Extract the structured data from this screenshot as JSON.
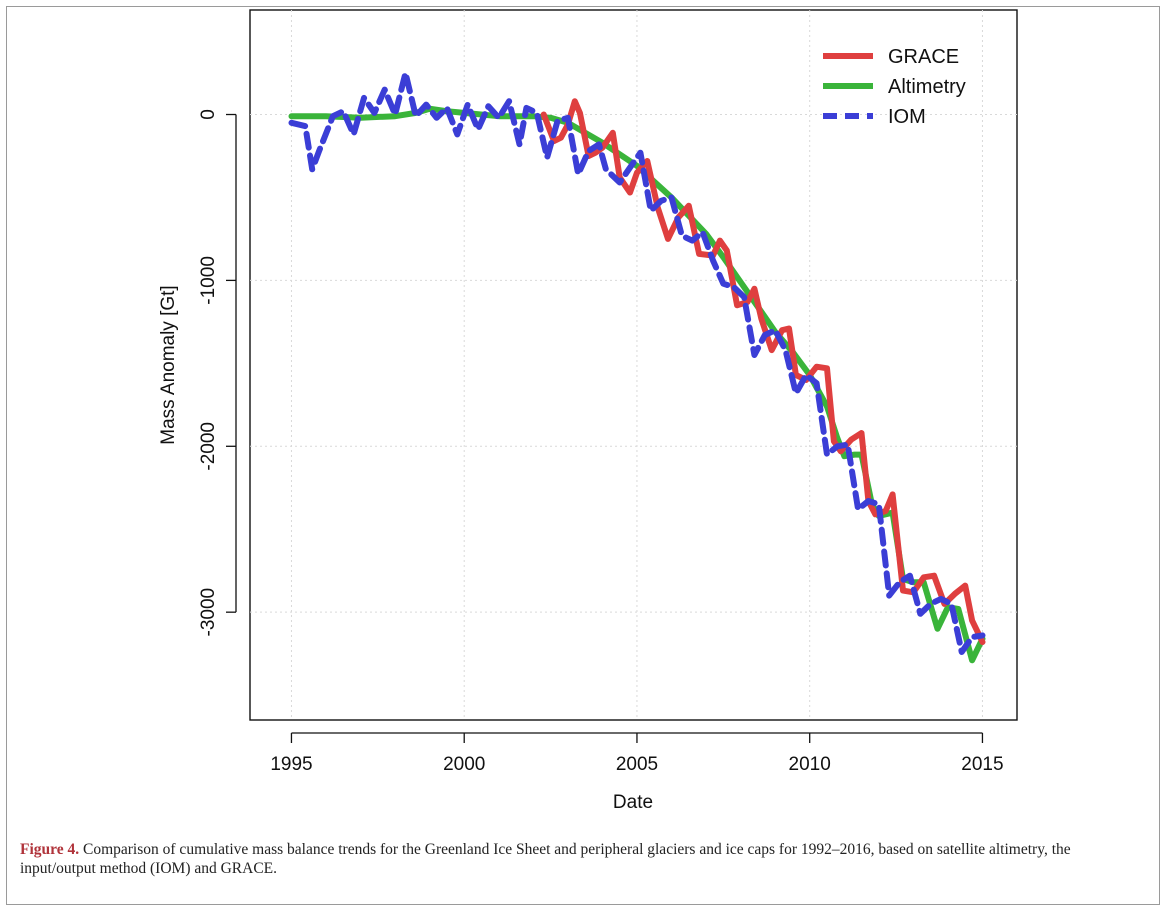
{
  "caption": {
    "label": "Figure 4.",
    "text": "Comparison of cumulative mass balance trends for the Greenland Ice Sheet and peripheral glaciers and ice caps for 1992–2016, based on satellite altimetry, the input/output method (IOM) and GRACE."
  },
  "chart_data": {
    "type": "line",
    "xlabel": "Date",
    "ylabel": "Mass Anomaly [Gt]",
    "xlim": [
      1993.8,
      2016.0
    ],
    "ylim": [
      -3650,
      630
    ],
    "x_ticks": [
      1995,
      2000,
      2005,
      2010,
      2015
    ],
    "y_ticks": [
      0,
      -1000,
      -2000,
      -3000
    ],
    "grid": true,
    "legend_position": "top-right",
    "series": [
      {
        "name": "GRACE",
        "color": "#df3f3f",
        "style": "solid",
        "x": [
          2002.3,
          2002.6,
          2002.8,
          2003.0,
          2003.2,
          2003.35,
          2003.6,
          2003.8,
          2004.0,
          2004.3,
          2004.5,
          2004.8,
          2005.0,
          2005.3,
          2005.6,
          2005.9,
          2006.2,
          2006.5,
          2006.8,
          2007.2,
          2007.4,
          2007.6,
          2007.9,
          2008.2,
          2008.4,
          2008.6,
          2008.9,
          2009.2,
          2009.4,
          2009.6,
          2009.9,
          2010.2,
          2010.5,
          2010.7,
          2010.9,
          2011.2,
          2011.5,
          2011.7,
          2011.9,
          2012.2,
          2012.4,
          2012.7,
          2013.0,
          2013.3,
          2013.6,
          2013.9,
          2014.2,
          2014.5,
          2014.7,
          2015.0
        ],
        "y": [
          0,
          -160,
          -140,
          -60,
          80,
          10,
          -250,
          -230,
          -200,
          -110,
          -380,
          -470,
          -350,
          -280,
          -560,
          -750,
          -620,
          -550,
          -840,
          -850,
          -760,
          -820,
          -1150,
          -1130,
          -1050,
          -1230,
          -1420,
          -1300,
          -1290,
          -1570,
          -1600,
          -1520,
          -1530,
          -1970,
          -2030,
          -1960,
          -1920,
          -2330,
          -2410,
          -2390,
          -2290,
          -2870,
          -2880,
          -2790,
          -2780,
          -2950,
          -2890,
          -2840,
          -3050,
          -3180
        ]
      },
      {
        "name": "Altimetry",
        "color": "#3ab43a",
        "style": "solid",
        "x": [
          1995,
          1996,
          1997,
          1998,
          1998.6,
          1999.0,
          1999.5,
          2000,
          2001,
          2002,
          2002.5,
          2003,
          2004,
          2005,
          2006,
          2007,
          2007.5,
          2008,
          2008.5,
          2009,
          2009.5,
          2010,
          2010.5,
          2010.8,
          2011,
          2011.3,
          2011.5,
          2011.8,
          2012,
          2012.4,
          2012.7,
          2013,
          2013.3,
          2013.7,
          2014,
          2014.3,
          2014.7,
          2015
        ],
        "y": [
          -10,
          -10,
          -20,
          -10,
          10,
          35,
          20,
          10,
          -10,
          -10,
          -20,
          -50,
          -170,
          -310,
          -500,
          -720,
          -860,
          -1010,
          -1160,
          -1310,
          -1430,
          -1570,
          -1760,
          -1950,
          -2060,
          -2050,
          -2050,
          -2350,
          -2420,
          -2400,
          -2800,
          -2820,
          -2820,
          -3100,
          -2970,
          -2980,
          -3290,
          -3160
        ]
      },
      {
        "name": "IOM",
        "color": "#3b3ed6",
        "style": "dashed",
        "x": [
          1995,
          1995.4,
          1995.6,
          1995.8,
          1996.2,
          1996.5,
          1996.8,
          1997.1,
          1997.4,
          1997.7,
          1998.0,
          1998.3,
          1998.6,
          1998.9,
          1999.2,
          1999.5,
          1999.8,
          2000.1,
          2000.4,
          2000.7,
          2001.0,
          2001.3,
          2001.6,
          2001.8,
          2002.1,
          2002.4,
          2002.7,
          2003.0,
          2003.3,
          2003.6,
          2003.9,
          2004.1,
          2004.5,
          2004.8,
          2005.1,
          2005.4,
          2005.7,
          2006.0,
          2006.3,
          2006.6,
          2006.9,
          2007.2,
          2007.5,
          2007.8,
          2008.1,
          2008.4,
          2008.7,
          2009.0,
          2009.3,
          2009.6,
          2009.9,
          2010.2,
          2010.5,
          2010.8,
          2011.1,
          2011.4,
          2011.7,
          2012.0,
          2012.3,
          2012.6,
          2012.9,
          2013.2,
          2013.5,
          2013.8,
          2014.1,
          2014.4,
          2014.7,
          2015.0
        ],
        "y": [
          -50,
          -70,
          -330,
          -220,
          -10,
          20,
          -120,
          100,
          10,
          150,
          0,
          250,
          -10,
          60,
          -20,
          40,
          -120,
          60,
          -90,
          50,
          -20,
          80,
          -180,
          40,
          10,
          -260,
          -40,
          -20,
          -360,
          -220,
          -180,
          -330,
          -410,
          -320,
          -230,
          -580,
          -520,
          -500,
          -730,
          -760,
          -710,
          -880,
          -1020,
          -1040,
          -1100,
          -1450,
          -1330,
          -1300,
          -1420,
          -1680,
          -1570,
          -1620,
          -2050,
          -2000,
          -1990,
          -2380,
          -2330,
          -2350,
          -2900,
          -2820,
          -2780,
          -3010,
          -2950,
          -2920,
          -2950,
          -3240,
          -3150,
          -3140
        ]
      }
    ]
  }
}
